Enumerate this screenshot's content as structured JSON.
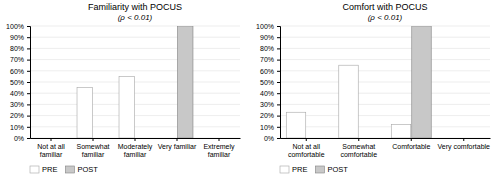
{
  "chart_data": [
    {
      "type": "bar",
      "title": "Familiarity with POCUS",
      "subtitle": "(ρ < 0.01)",
      "categories": [
        "Not at all\nfamiliar",
        "Somewhat\nfamiliar",
        "Moderately\nfamiliar",
        "Very familiar",
        "Extremely\nfamiliar"
      ],
      "series": [
        {
          "name": "PRE",
          "color": "#ffffff",
          "values": [
            0,
            45,
            55,
            0,
            0
          ]
        },
        {
          "name": "POST",
          "color": "#c8c8c8",
          "values": [
            0,
            0,
            0,
            100,
            0
          ]
        }
      ],
      "ylim": [
        0,
        100
      ],
      "yticks": [
        {
          "value": 0,
          "label": "0%"
        },
        {
          "value": 10,
          "label": "10%"
        },
        {
          "value": 20,
          "label": "20%"
        },
        {
          "value": 30,
          "label": "30%"
        },
        {
          "value": 40,
          "label": "40%"
        },
        {
          "value": 50,
          "label": "50%"
        },
        {
          "value": 60,
          "label": "60%"
        },
        {
          "value": 70,
          "label": "70%"
        },
        {
          "value": 80,
          "label": "80%"
        },
        {
          "value": 90,
          "label": "90%"
        },
        {
          "value": 100,
          "label": "100%"
        }
      ],
      "grid": true,
      "legend": "lower left"
    },
    {
      "type": "bar",
      "title": "Comfort with POCUS",
      "subtitle": "(ρ < 0.01)",
      "categories": [
        "Not at all\ncomfortable",
        "Somewhat\ncomfortable",
        "Comfortable",
        "Very comfortable"
      ],
      "series": [
        {
          "name": "PRE",
          "color": "#ffffff",
          "values": [
            23,
            65,
            12,
            0
          ]
        },
        {
          "name": "POST",
          "color": "#c8c8c8",
          "values": [
            0,
            0,
            100,
            0
          ]
        }
      ],
      "ylim": [
        0,
        100
      ],
      "yticks": [
        {
          "value": 0,
          "label": "0%"
        },
        {
          "value": 10,
          "label": "10%"
        },
        {
          "value": 20,
          "label": "20%"
        },
        {
          "value": 30,
          "label": "30%"
        },
        {
          "value": 40,
          "label": "40%"
        },
        {
          "value": 50,
          "label": "50%"
        },
        {
          "value": 60,
          "label": "60%"
        },
        {
          "value": 70,
          "label": "70%"
        },
        {
          "value": 80,
          "label": "80%"
        },
        {
          "value": 90,
          "label": "90%"
        },
        {
          "value": 100,
          "label": "100%"
        }
      ],
      "grid": true,
      "legend": "lower left"
    }
  ]
}
